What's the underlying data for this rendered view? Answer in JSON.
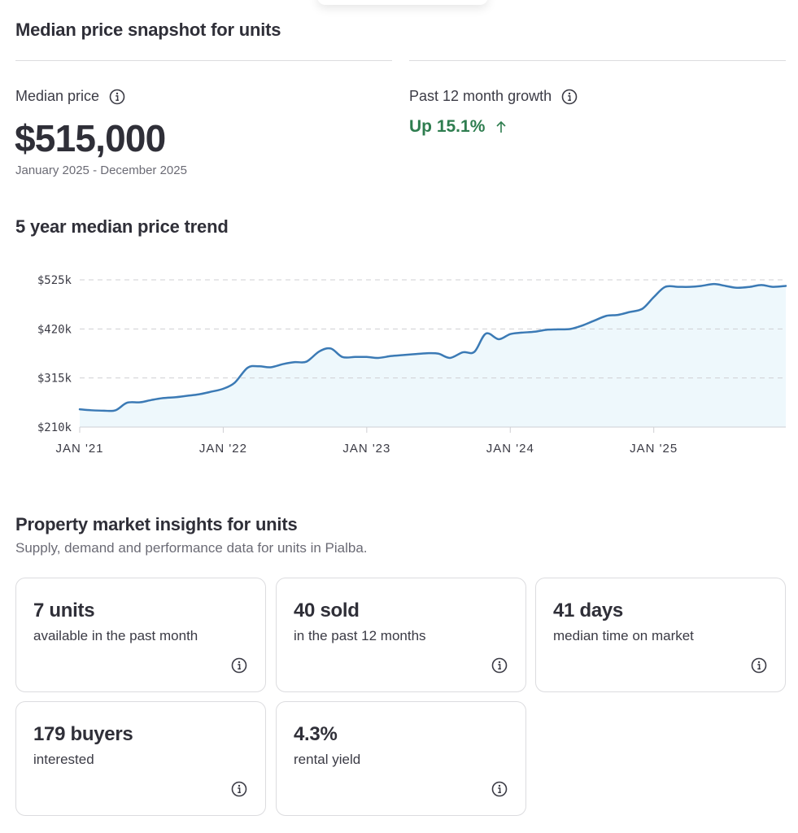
{
  "snapshot": {
    "title": "Median price snapshot for units",
    "median_label": "Median price",
    "median_value": "$515,000",
    "median_period": "January 2025 - December 2025",
    "growth_label": "Past 12 month growth",
    "growth_value": "Up 15.1%",
    "growth_color": "#2e7d4f"
  },
  "trend": {
    "title": "5 year median price trend"
  },
  "chart_data": {
    "type": "area",
    "title": "5 year median price trend",
    "ylim": [
      210000,
      525000
    ],
    "xlim": [
      2021.0,
      2025.92
    ],
    "y_ticks": [
      {
        "value": 525000,
        "label": "$525k"
      },
      {
        "value": 420000,
        "label": "$420k"
      },
      {
        "value": 315000,
        "label": "$315k"
      },
      {
        "value": 210000,
        "label": "$210k"
      }
    ],
    "x_ticks": [
      {
        "value": 2021,
        "label": "JAN '21"
      },
      {
        "value": 2022,
        "label": "JAN '22"
      },
      {
        "value": 2023,
        "label": "JAN '23"
      },
      {
        "value": 2024,
        "label": "JAN '24"
      },
      {
        "value": 2025,
        "label": "JAN '25"
      }
    ],
    "grid": true,
    "line_color": "#3b7ab5",
    "fill_color": "#eef8fc",
    "series": [
      {
        "x": [
          2021.0,
          2021.08,
          2021.17,
          2021.25,
          2021.33,
          2021.42,
          2021.5,
          2021.58,
          2021.67,
          2021.75,
          2021.83,
          2021.92,
          2022.0,
          2022.08,
          2022.17,
          2022.25,
          2022.33,
          2022.42,
          2022.5,
          2022.58,
          2022.67,
          2022.75,
          2022.83,
          2022.92,
          2023.0,
          2023.08,
          2023.17,
          2023.25,
          2023.33,
          2023.42,
          2023.5,
          2023.58,
          2023.67,
          2023.75,
          2023.83,
          2023.92,
          2024.0,
          2024.08,
          2024.17,
          2024.25,
          2024.33,
          2024.42,
          2024.5,
          2024.58,
          2024.67,
          2024.75,
          2024.83,
          2024.92,
          2025.0,
          2025.08,
          2025.17,
          2025.25,
          2025.33,
          2025.42,
          2025.5,
          2025.58,
          2025.67,
          2025.75,
          2025.83,
          2025.92
        ],
        "y": [
          248000,
          246000,
          245000,
          246000,
          262000,
          263000,
          268000,
          272000,
          274000,
          277000,
          280000,
          286000,
          292000,
          305000,
          337000,
          340000,
          338000,
          345000,
          349000,
          350000,
          372000,
          378000,
          360000,
          360000,
          360000,
          358000,
          362000,
          364000,
          366000,
          368000,
          367000,
          358000,
          370000,
          371000,
          410000,
          398000,
          409000,
          412000,
          414000,
          418000,
          419000,
          420000,
          427000,
          437000,
          448000,
          450000,
          456000,
          463000,
          488000,
          510000,
          510000,
          510000,
          512000,
          516000,
          512000,
          508000,
          510000,
          514000,
          510000,
          512000
        ]
      }
    ]
  },
  "insights": {
    "title": "Property market insights for units",
    "subtitle": "Supply, demand and performance data for units in Pialba.",
    "cards": [
      {
        "value": "7 units",
        "desc": "available in the past month"
      },
      {
        "value": "40 sold",
        "desc": "in the past 12 months"
      },
      {
        "value": "41 days",
        "desc": "median time on market"
      },
      {
        "value": "179 buyers",
        "desc": "interested"
      },
      {
        "value": "4.3%",
        "desc": "rental yield"
      }
    ]
  },
  "icons": {
    "info": "info-circle-icon",
    "growth_arrow": "arrow-up-icon"
  }
}
